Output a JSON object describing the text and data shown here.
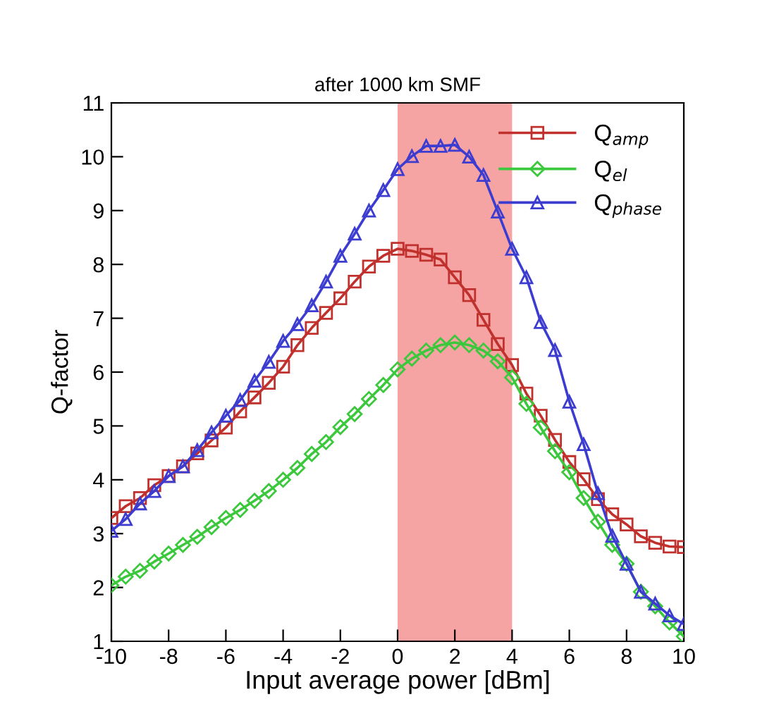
{
  "chart_data": {
    "type": "line",
    "title": "after 1000 km SMF",
    "xlabel": "Input average power [dBm]",
    "ylabel": "Q-factor",
    "x": [
      -10,
      -9.5,
      -9,
      -8.5,
      -8,
      -7.5,
      -7,
      -6.5,
      -6,
      -5.5,
      -5,
      -4.5,
      -4,
      -3.5,
      -3,
      -2.5,
      -2,
      -1.5,
      -1,
      -0.5,
      0,
      0.5,
      1,
      1.5,
      2,
      2.5,
      3,
      3.5,
      4,
      4.5,
      5,
      5.5,
      6,
      6.5,
      7,
      7.5,
      8,
      8.5,
      9,
      9.5,
      10
    ],
    "series": [
      {
        "name": "Q$_{amp}$",
        "color": "#c0302c",
        "marker": "square",
        "values": [
          3.29,
          3.51,
          3.66,
          3.9,
          4.07,
          4.25,
          4.49,
          4.73,
          4.97,
          5.27,
          5.53,
          5.8,
          6.1,
          6.5,
          6.82,
          7.1,
          7.37,
          7.68,
          7.96,
          8.16,
          8.29,
          8.25,
          8.18,
          8.09,
          7.76,
          7.43,
          6.97,
          6.52,
          6.13,
          5.6,
          5.19,
          4.74,
          4.33,
          4.01,
          3.64,
          3.36,
          3.17,
          2.95,
          2.83,
          2.76,
          2.75
        ]
      },
      {
        "name": "Q$_{el}$",
        "color": "#3cc83c",
        "marker": "diamond",
        "values": [
          2.04,
          2.2,
          2.31,
          2.48,
          2.63,
          2.79,
          2.94,
          3.12,
          3.29,
          3.44,
          3.61,
          3.79,
          4.0,
          4.22,
          4.48,
          4.7,
          4.98,
          5.22,
          5.5,
          5.76,
          6.05,
          6.25,
          6.4,
          6.5,
          6.55,
          6.5,
          6.4,
          6.2,
          5.9,
          5.41,
          4.97,
          4.53,
          4.14,
          3.66,
          3.22,
          2.79,
          2.44,
          1.92,
          1.65,
          1.35,
          1.09
        ]
      },
      {
        "name": "Q$_{phase}$",
        "color": "#3c3cd0",
        "marker": "triangle",
        "values": [
          3.05,
          3.27,
          3.56,
          3.79,
          4.07,
          4.25,
          4.55,
          4.88,
          5.19,
          5.48,
          5.84,
          6.19,
          6.58,
          6.89,
          7.24,
          7.68,
          8.16,
          8.57,
          9.0,
          9.38,
          9.77,
          10.01,
          10.2,
          10.2,
          10.22,
          10.0,
          9.66,
          8.98,
          8.29,
          7.76,
          6.93,
          6.41,
          5.45,
          4.66,
          3.75,
          2.96,
          2.44,
          1.92,
          1.7,
          1.48,
          1.32
        ]
      }
    ],
    "bands": [
      {
        "axis": "x",
        "from": 0,
        "to": 4,
        "color": "#f5a3a3"
      }
    ],
    "xlim": [
      -10,
      10
    ],
    "xticks": [
      -10,
      -8,
      -6,
      -4,
      -2,
      0,
      2,
      4,
      6,
      8,
      10
    ],
    "ylim": [
      1,
      11
    ],
    "yticks": [
      1,
      2,
      3,
      4,
      5,
      6,
      7,
      8,
      9,
      10,
      11
    ],
    "grid": false,
    "legend": "top right",
    "line_style": "solid"
  }
}
